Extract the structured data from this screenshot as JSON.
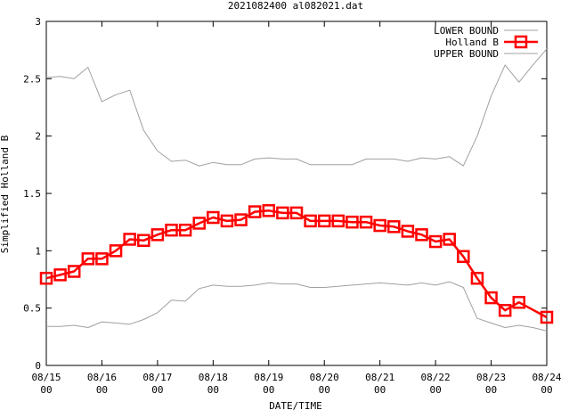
{
  "chart_data": {
    "type": "line",
    "title": "2021082400 al082021.dat",
    "xlabel": "DATE/TIME",
    "ylabel": "Simplified Holland B",
    "ylim": [
      0,
      3
    ],
    "y_ticks": [
      0,
      0.5,
      1,
      1.5,
      2,
      2.5,
      3
    ],
    "y_tick_labels": [
      "0",
      "0.5",
      "1",
      "1.5",
      "2",
      "2.5",
      "3"
    ],
    "x_range_hours": [
      0,
      216
    ],
    "x_ticks": [
      {
        "h": 0,
        "date": "08/15",
        "time": "00"
      },
      {
        "h": 24,
        "date": "08/16",
        "time": "00"
      },
      {
        "h": 48,
        "date": "08/17",
        "time": "00"
      },
      {
        "h": 72,
        "date": "08/18",
        "time": "00"
      },
      {
        "h": 96,
        "date": "08/19",
        "time": "00"
      },
      {
        "h": 120,
        "date": "08/20",
        "time": "00"
      },
      {
        "h": 144,
        "date": "08/21",
        "time": "00"
      },
      {
        "h": 168,
        "date": "08/22",
        "time": "00"
      },
      {
        "h": 192,
        "date": "08/23",
        "time": "00"
      },
      {
        "h": 216,
        "date": "08/24",
        "time": "00"
      }
    ],
    "legend_position": "top-right",
    "colors": {
      "bounds": "#a0a0a0",
      "holland": "#ff0000",
      "axis": "#000000"
    },
    "series": [
      {
        "name": "LOWER BOUND",
        "style": "thin-line",
        "x": [
          0,
          6,
          12,
          18,
          24,
          30,
          36,
          42,
          48,
          54,
          60,
          66,
          72,
          78,
          84,
          90,
          96,
          102,
          108,
          114,
          120,
          126,
          132,
          138,
          144,
          150,
          156,
          162,
          168,
          174,
          180,
          186,
          192,
          198,
          204,
          210,
          216
        ],
        "values": [
          0.34,
          0.34,
          0.35,
          0.33,
          0.38,
          0.37,
          0.36,
          0.4,
          0.46,
          0.57,
          0.56,
          0.67,
          0.7,
          0.69,
          0.69,
          0.7,
          0.72,
          0.71,
          0.71,
          0.68,
          0.68,
          0.69,
          0.7,
          0.71,
          0.72,
          0.71,
          0.7,
          0.72,
          0.7,
          0.73,
          0.68,
          0.41,
          0.37,
          0.33,
          0.35,
          0.33,
          0.3
        ]
      },
      {
        "name": "Holland B",
        "style": "thick-line-squares",
        "x": [
          0,
          6,
          12,
          18,
          24,
          30,
          36,
          42,
          48,
          54,
          60,
          66,
          72,
          78,
          84,
          90,
          96,
          102,
          108,
          114,
          120,
          126,
          132,
          138,
          144,
          150,
          156,
          162,
          168,
          174,
          180,
          186,
          192,
          198,
          204,
          216
        ],
        "values": [
          0.76,
          0.79,
          0.82,
          0.93,
          0.93,
          1.0,
          1.1,
          1.09,
          1.14,
          1.18,
          1.18,
          1.24,
          1.29,
          1.26,
          1.27,
          1.34,
          1.35,
          1.33,
          1.33,
          1.26,
          1.26,
          1.26,
          1.25,
          1.25,
          1.22,
          1.21,
          1.17,
          1.14,
          1.08,
          1.1,
          0.95,
          0.76,
          0.59,
          0.48,
          0.55,
          0.42
        ]
      },
      {
        "name": "UPPER BOUND",
        "style": "thin-line",
        "x": [
          0,
          6,
          12,
          18,
          24,
          30,
          36,
          42,
          48,
          54,
          60,
          66,
          72,
          78,
          84,
          90,
          96,
          102,
          108,
          114,
          120,
          126,
          132,
          138,
          144,
          150,
          156,
          162,
          168,
          174,
          180,
          186,
          192,
          198,
          204,
          210,
          216
        ],
        "values": [
          2.51,
          2.52,
          2.5,
          2.6,
          2.3,
          2.36,
          2.4,
          2.05,
          1.87,
          1.78,
          1.79,
          1.74,
          1.77,
          1.75,
          1.75,
          1.8,
          1.81,
          1.8,
          1.8,
          1.75,
          1.75,
          1.75,
          1.75,
          1.8,
          1.8,
          1.8,
          1.78,
          1.81,
          1.8,
          1.82,
          1.74,
          2.0,
          2.35,
          2.62,
          2.47,
          2.62,
          2.76
        ]
      }
    ]
  }
}
